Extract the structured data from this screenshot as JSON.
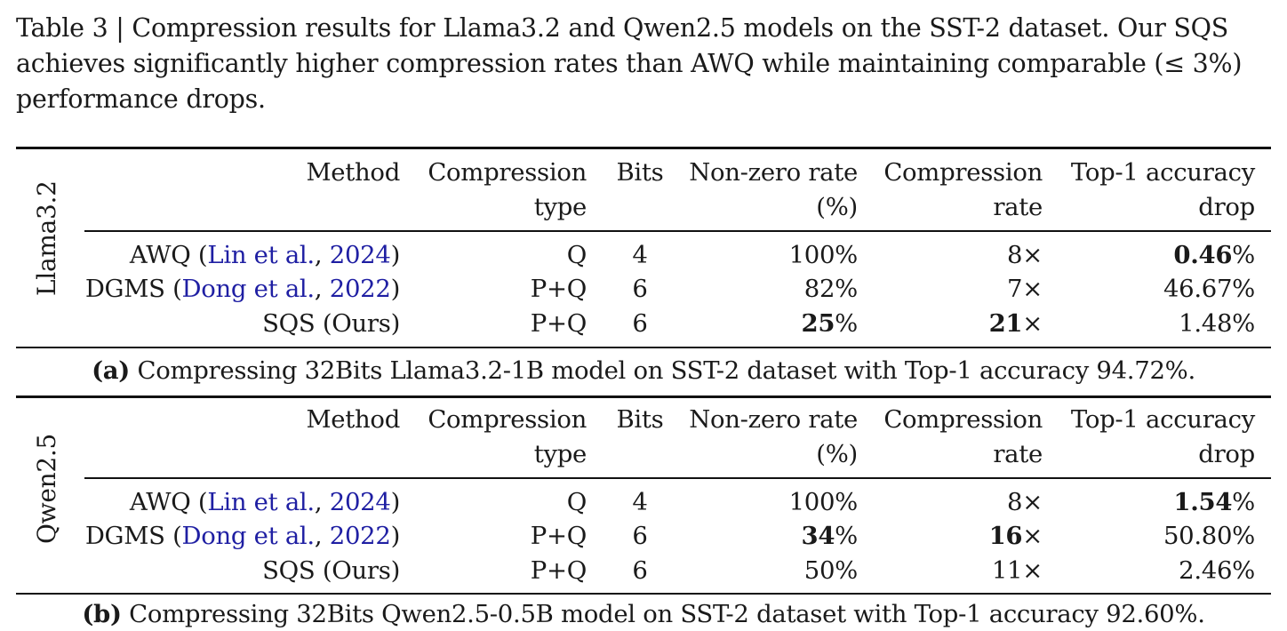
{
  "caption": {
    "line1": "Table 3 | Compression results for Llama3.2 and Qwen2.5 models on the SST-2 dataset. Our SQS",
    "line2": "achieves significantly higher compression rates than AWQ while maintaining comparable (≤ 3%)",
    "line3": "performance drops."
  },
  "headers": {
    "method": "Method",
    "comp_type_1": "Compression",
    "comp_type_2": "type",
    "bits": "Bits",
    "nonzero_1": "Non-zero rate",
    "nonzero_2": "(%)",
    "comp_rate_1": "Compression",
    "comp_rate_2": "rate",
    "acc_1": "Top-1 accuracy",
    "acc_2": "drop"
  },
  "tables": [
    {
      "model": "Llama3.2",
      "subcaption_label": "(a)",
      "subcaption_text": " Compressing 32Bits Llama3.2-1B model on SST-2 dataset with Top-1 accuracy 94.72%.",
      "rows": [
        {
          "method": "AWQ (",
          "cite_author": "Lin et al.",
          "cite_sep": ", ",
          "cite_year": "2024",
          "method_end": ")",
          "type": "Q",
          "bits": "4",
          "nonzero": "100%",
          "rate": "8×",
          "acc_bold": "0.46",
          "acc": "%"
        },
        {
          "method": "DGMS (",
          "cite_author": "Dong et al.",
          "cite_sep": ", ",
          "cite_year": "2022",
          "method_end": ")",
          "type": "P+Q",
          "bits": "6",
          "nonzero": "82%",
          "rate": "7×",
          "acc_bold": "",
          "acc": "46.67%"
        },
        {
          "method": "SQS (Ours)",
          "cite_author": "",
          "cite_sep": "",
          "cite_year": "",
          "method_end": "",
          "type": "P+Q",
          "bits": "6",
          "nonzero_bold": "25",
          "nonzero": "%",
          "rate_bold": "21",
          "rate": "×",
          "acc_bold": "",
          "acc": "1.48%"
        }
      ]
    },
    {
      "model": "Qwen2.5",
      "subcaption_label": "(b)",
      "subcaption_text": " Compressing 32Bits Qwen2.5-0.5B model on SST-2 dataset with Top-1 accuracy 92.60%.",
      "rows": [
        {
          "method": "AWQ (",
          "cite_author": "Lin et al.",
          "cite_sep": ", ",
          "cite_year": "2024",
          "method_end": ")",
          "type": "Q",
          "bits": "4",
          "nonzero": "100%",
          "rate": "8×",
          "acc_bold": "1.54",
          "acc": "%"
        },
        {
          "method": "DGMS (",
          "cite_author": "Dong et al.",
          "cite_sep": ", ",
          "cite_year": "2022",
          "method_end": ")",
          "type": "P+Q",
          "bits": "6",
          "nonzero_bold": "34",
          "nonzero": "%",
          "rate_bold": "16",
          "rate": "×",
          "acc_bold": "",
          "acc": "50.80%"
        },
        {
          "method": "SQS (Ours)",
          "cite_author": "",
          "cite_sep": "",
          "cite_year": "",
          "method_end": "",
          "type": "P+Q",
          "bits": "6",
          "nonzero": "50%",
          "rate": "11×",
          "acc_bold": "",
          "acc": "2.46%"
        }
      ]
    }
  ]
}
